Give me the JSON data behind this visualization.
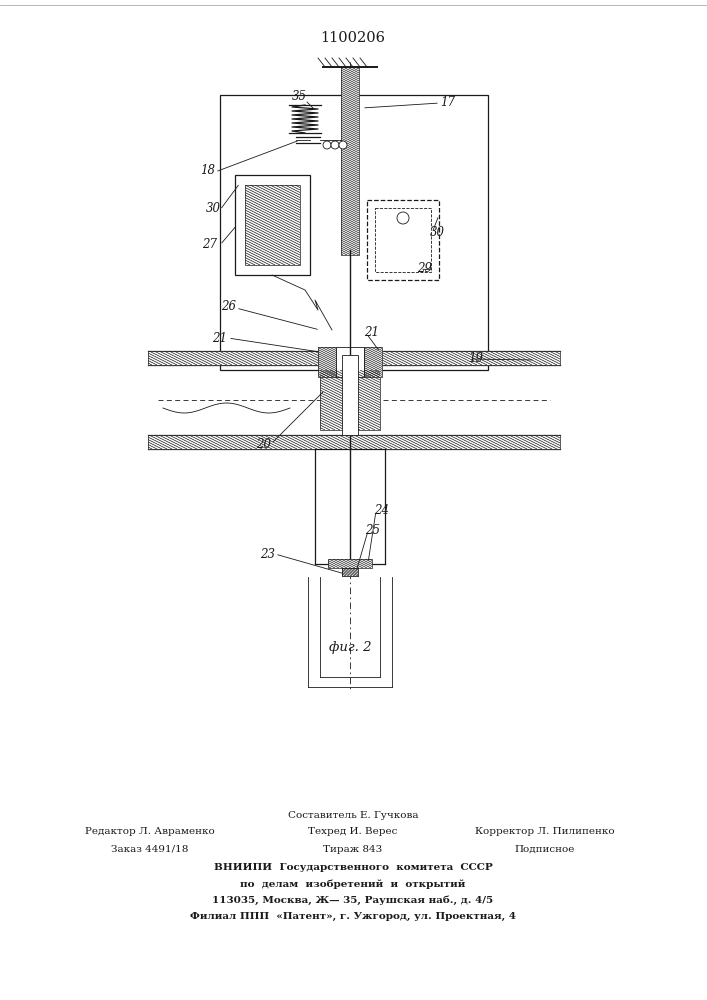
{
  "title": "1100206",
  "fig_label": "фиг. 2",
  "bg_color": "#ffffff",
  "line_color": "#1a1a1a",
  "footer_lines": [
    [
      "Составитель Е. Гучкова",
      353,
      815
    ],
    [
      "Редактор Л. Авраменко",
      150,
      832
    ],
    [
      "Техред И. Верес",
      353,
      832
    ],
    [
      "Корректор Л. Пилипенко",
      545,
      832
    ],
    [
      "Заказ 4491/18",
      150,
      849
    ],
    [
      "Тираж 843",
      353,
      849
    ],
    [
      "Подписное",
      545,
      849
    ],
    [
      "ВНИИПИ  Государственного  комитета  СССР",
      353,
      868
    ],
    [
      "по  делам  изобретений  и  открытий",
      353,
      884
    ],
    [
      "113035, Москва, Ж— 35, Раушская наб., д. 4/5",
      353,
      900
    ],
    [
      "Филиал ППП  «Патент», г. Ужгород, ул. Проектная, 4",
      353,
      916
    ]
  ]
}
